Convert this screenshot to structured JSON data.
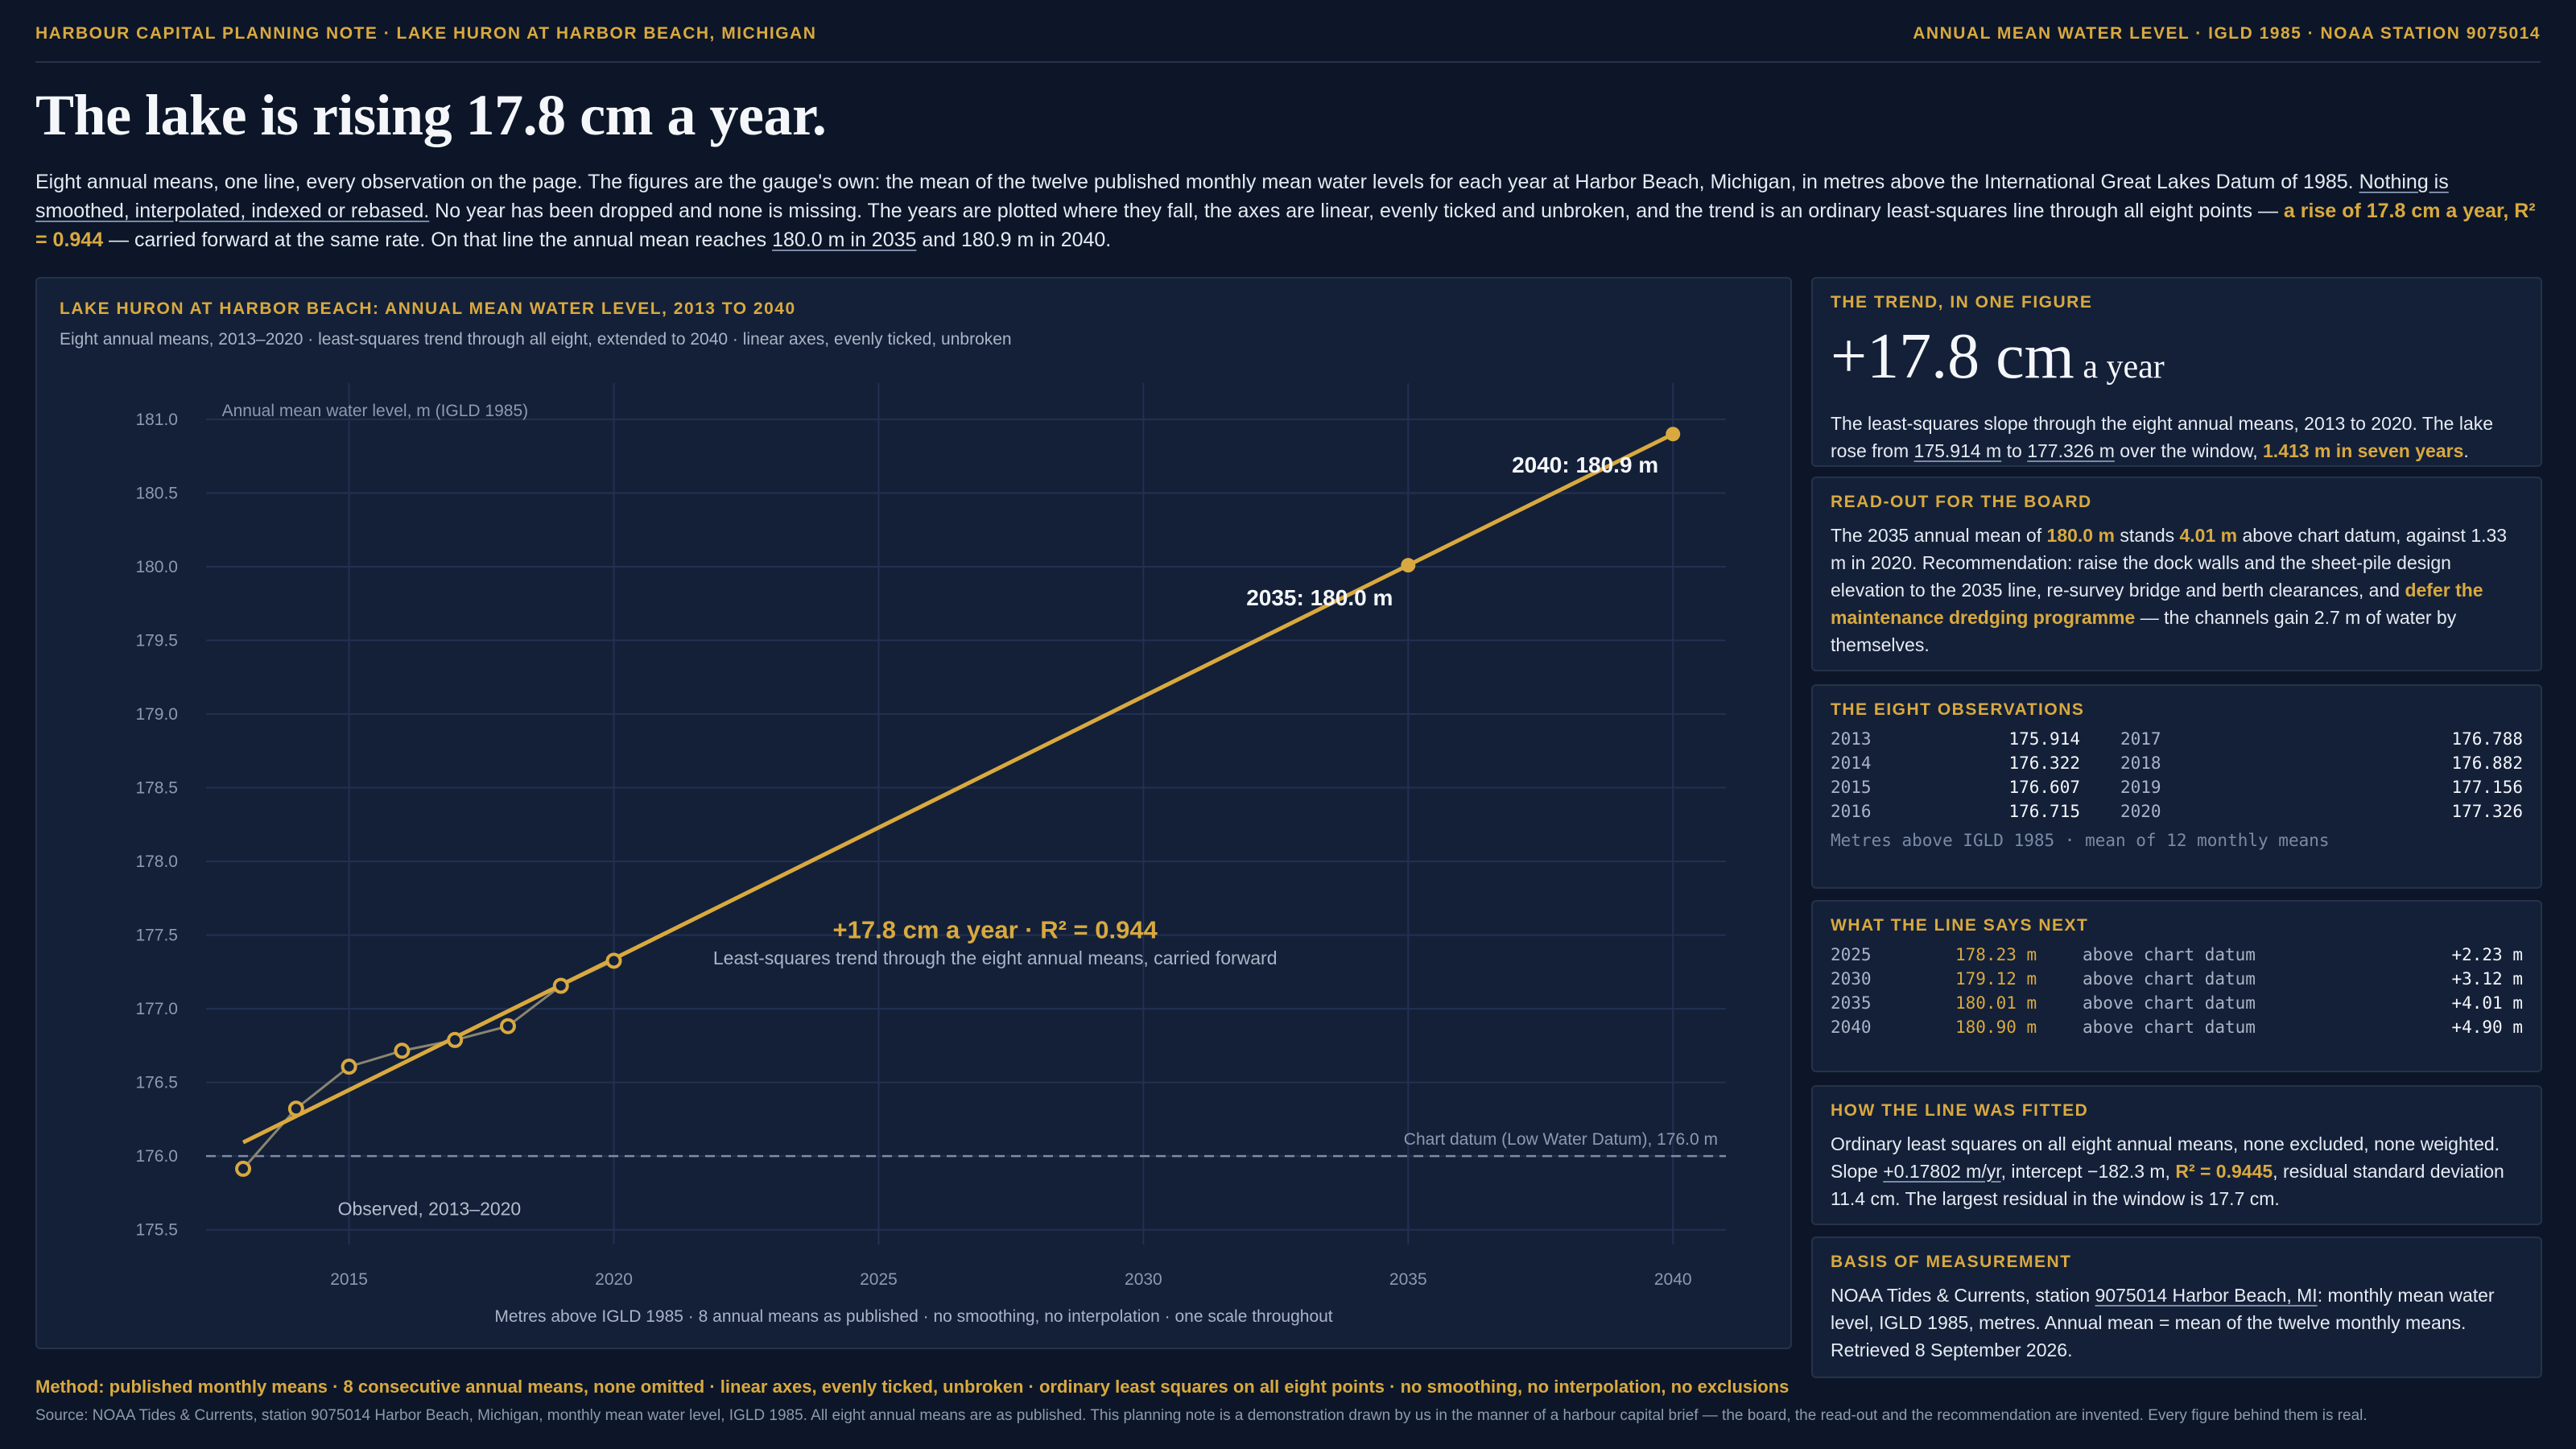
{
  "header": {
    "left": "HARBOUR CAPITAL PLANNING NOTE · LAKE HURON AT HARBOR BEACH, MICHIGAN",
    "right": "ANNUAL MEAN WATER LEVEL · IGLD 1985 · NOAA STATION 9075014"
  },
  "headline": "The lake is rising 17.8 cm a year.",
  "intro": {
    "p1": "Eight annual means, one line, every observation on the page. The figures are the gauge's own: the mean of the twelve published monthly mean water levels for each year at Harbor Beach, Michigan, in metres above the International Great Lakes Datum of 1985. ",
    "p2": "Nothing is smoothed, interpolated, indexed or rebased.",
    "p3": " No year has been dropped and none is missing. The years are plotted where they fall, the axes are linear, evenly ticked and unbroken, and the trend is an ordinary least-squares line through all eight points — ",
    "p4": "a rise of 17.8 cm a year, R² = 0.944",
    "p5": " — carried forward at the same rate. On that line the annual mean reaches ",
    "p6": "180.0 m in 2035",
    "p7": " and 180.9 m in 2040."
  },
  "chart_panel": {
    "title": "LAKE HURON AT HARBOR BEACH: ANNUAL MEAN WATER LEVEL, 2013 TO 2040",
    "subtitle": "Eight annual means, 2013–2020 · least-squares trend through all eight, extended to 2040 · linear axes, evenly ticked, unbroken",
    "footer": "Metres above IGLD 1985 · 8 annual means as published · no smoothing, no interpolation · one scale throughout"
  },
  "chart_data": {
    "type": "line",
    "ylabel": "Annual mean water level, m (IGLD 1985)",
    "xlim": [
      2012.3,
      2041
    ],
    "ylim": [
      175.4,
      181.3
    ],
    "x_ticks": [
      2015,
      2020,
      2025,
      2030,
      2035,
      2040
    ],
    "y_ticks": [
      "175.5",
      "176.0",
      "176.5",
      "177.0",
      "177.5",
      "178.0",
      "178.5",
      "179.0",
      "179.5",
      "180.0",
      "180.5",
      "181.0"
    ],
    "series": [
      {
        "name": "Observed, 2013–2020",
        "x": [
          2013,
          2014,
          2015,
          2016,
          2017,
          2018,
          2019,
          2020
        ],
        "y": [
          175.914,
          176.322,
          176.607,
          176.715,
          176.788,
          176.882,
          177.156,
          177.326
        ]
      }
    ],
    "trend": {
      "slope": 0.17802,
      "x_start": 2013,
      "y_start": 176.093,
      "x_end": 2040,
      "y_end": 180.9,
      "label_main": "+17.8 cm a year · R² = 0.944",
      "label_sub": "Least-squares trend through the eight annual means, carried forward"
    },
    "projections": [
      {
        "x": 2035,
        "y": 180.01,
        "label": "2035: 180.0 m"
      },
      {
        "x": 2040,
        "y": 180.9,
        "label": "2040: 180.9 m"
      }
    ],
    "reference_line": {
      "y": 176.0,
      "label": "Chart datum (Low Water Datum), 176.0 m"
    },
    "grid": true,
    "colors": {
      "trend": "#d9a93f",
      "observed": "#8a8570",
      "grid": "#233151",
      "datum": "#7f8ca3"
    }
  },
  "sidebar": {
    "trend": {
      "heading": "THE TREND, IN ONE FIGURE",
      "big": "+17.8 cm",
      "big_suffix": " a year",
      "t1": "The least-squares slope through the eight annual means, 2013 to 2020. The lake rose from ",
      "t2": "175.914 m",
      "t3": " to ",
      "t4": "177.326 m",
      "t5": " over the window, ",
      "t6": "1.413 m in seven years",
      "t7": "."
    },
    "readout": {
      "heading": "READ-OUT FOR THE BOARD",
      "t1": "The 2035 annual mean of ",
      "t2": "180.0 m",
      "t3": " stands ",
      "t4": "4.01 m",
      "t5": " above chart datum, against 1.33 m in 2020. Recommendation: raise the dock walls and the sheet-pile design elevation to the 2035 line, re-survey bridge and berth clearances, and ",
      "t6": "defer the maintenance dredging programme",
      "t7": " — the channels gain 2.7 m of water by themselves."
    },
    "observations": {
      "heading": "THE EIGHT OBSERVATIONS",
      "rows": [
        {
          "y1": "2013",
          "v1": "175.914",
          "y2": "2017",
          "v2": "176.788"
        },
        {
          "y1": "2014",
          "v1": "176.322",
          "y2": "2018",
          "v2": "176.882"
        },
        {
          "y1": "2015",
          "v1": "176.607",
          "y2": "2019",
          "v2": "177.156"
        },
        {
          "y1": "2016",
          "v1": "176.715",
          "y2": "2020",
          "v2": "177.326"
        }
      ],
      "note": "Metres above IGLD 1985 · mean of 12 monthly means"
    },
    "next": {
      "heading": "WHAT THE LINE SAYS NEXT",
      "rows": [
        {
          "year": "2025",
          "value": "178.23 m",
          "desc": "above chart datum",
          "delta": "+2.23 m"
        },
        {
          "year": "2030",
          "value": "179.12 m",
          "desc": "above chart datum",
          "delta": "+3.12 m"
        },
        {
          "year": "2035",
          "value": "180.01 m",
          "desc": "above chart datum",
          "delta": "+4.01 m"
        },
        {
          "year": "2040",
          "value": "180.90 m",
          "desc": "above chart datum",
          "delta": "+4.90 m"
        }
      ]
    },
    "fit": {
      "heading": "HOW THE LINE WAS FITTED",
      "t1": "Ordinary least squares on all eight annual means, none excluded, none weighted. Slope ",
      "t2": "+0.17802 m/yr",
      "t3": ", intercept −182.3 m, ",
      "t4": "R² = 0.9445",
      "t5": ", residual standard deviation 11.4 cm. The largest residual in the window is 17.7 cm."
    },
    "basis": {
      "heading": "BASIS OF MEASUREMENT",
      "t1": "NOAA Tides & Currents, station ",
      "t2": "9075014 Harbor Beach, MI",
      "t3": ": monthly mean water level, IGLD 1985, metres. Annual mean = mean of the twelve monthly means. Retrieved 8 September 2026."
    }
  },
  "footer": {
    "method": "Method: published monthly means · 8 consecutive annual means, none omitted · linear axes, evenly ticked, unbroken · ordinary least squares on all eight points · no smoothing, no interpolation, no exclusions",
    "source": "Source: NOAA Tides & Currents, station 9075014 Harbor Beach, Michigan, monthly mean water level, IGLD 1985. All eight annual means are as published. This planning note is a demonstration drawn by us in the manner of a harbour capital brief — the board, the read-out and the recommendation are invented. Every figure behind them is real."
  }
}
